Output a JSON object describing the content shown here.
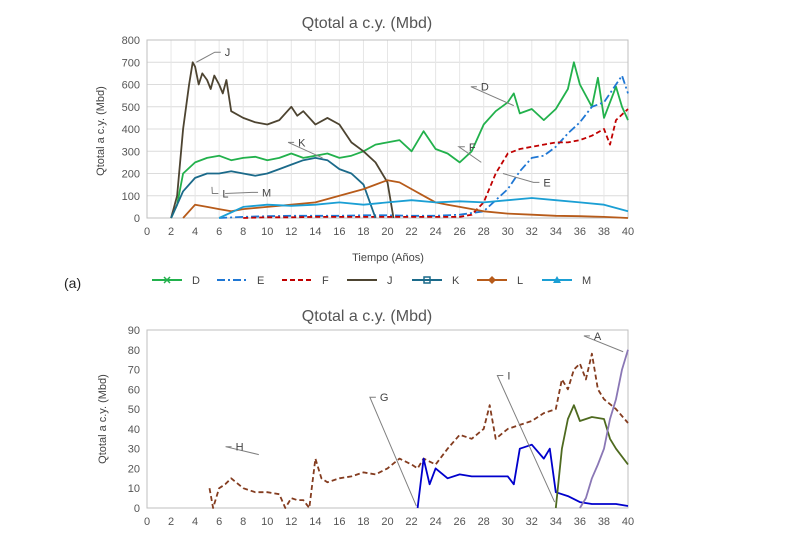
{
  "panel_label": "(a)",
  "chart_data": [
    {
      "type": "line",
      "title": "Qtotal a c.y. (Mbd)",
      "xlabel": "Tiempo (Años)",
      "ylabel": "Qtotal a c.y. (Mbd)",
      "xlim": [
        0,
        40
      ],
      "ylim": [
        0,
        800
      ],
      "xticks": [
        0,
        2,
        4,
        6,
        8,
        10,
        12,
        14,
        16,
        18,
        20,
        22,
        24,
        26,
        28,
        30,
        32,
        34,
        36,
        38,
        40
      ],
      "yticks": [
        0,
        100,
        200,
        300,
        400,
        500,
        600,
        700,
        800
      ],
      "grid": true,
      "legend_position": "bottom",
      "series": [
        {
          "name": "D",
          "color": "#22b14c",
          "dash": "solid",
          "marker": "x",
          "x": [
            2,
            2.5,
            3,
            4,
            5,
            6,
            7,
            8,
            9,
            10,
            11,
            12,
            13,
            14,
            15,
            16,
            17,
            18,
            19,
            20,
            21,
            22,
            23,
            24,
            25,
            26,
            27,
            28,
            29,
            30,
            30.5,
            31,
            32,
            33,
            34,
            35,
            35.5,
            36,
            37,
            37.5,
            38,
            39,
            39.5,
            40
          ],
          "y": [
            0,
            60,
            200,
            250,
            270,
            280,
            260,
            270,
            275,
            260,
            270,
            290,
            270,
            280,
            290,
            270,
            280,
            300,
            330,
            340,
            350,
            300,
            390,
            310,
            290,
            250,
            300,
            420,
            480,
            520,
            560,
            470,
            490,
            440,
            490,
            580,
            700,
            600,
            500,
            630,
            450,
            590,
            500,
            440
          ]
        },
        {
          "name": "E",
          "color": "#1f77d4",
          "dash": "dashdot",
          "marker": "",
          "x": [
            6,
            8,
            10,
            12,
            14,
            16,
            18,
            20,
            22,
            24,
            26,
            28,
            29,
            30,
            31,
            32,
            33,
            34,
            35,
            36,
            37,
            38,
            39,
            39.5,
            40
          ],
          "y": [
            0,
            5,
            8,
            10,
            10,
            10,
            12,
            12,
            10,
            10,
            15,
            30,
            80,
            130,
            210,
            270,
            280,
            320,
            380,
            430,
            500,
            520,
            600,
            640,
            560
          ]
        },
        {
          "name": "F",
          "color": "#c00000",
          "dash": "dashed",
          "marker": "",
          "x": [
            8,
            10,
            12,
            14,
            16,
            18,
            20,
            22,
            24,
            26,
            27,
            28,
            29,
            30,
            31,
            32,
            33,
            34,
            35,
            36,
            37,
            38,
            38.5,
            39,
            40
          ],
          "y": [
            0,
            3,
            3,
            5,
            5,
            5,
            5,
            5,
            5,
            5,
            15,
            70,
            200,
            290,
            310,
            320,
            330,
            340,
            340,
            350,
            370,
            400,
            330,
            440,
            490
          ]
        },
        {
          "name": "J",
          "color": "#4d4431",
          "dash": "solid",
          "marker": "",
          "x": [
            2,
            2.5,
            3,
            3.5,
            3.8,
            4,
            4.3,
            4.6,
            5,
            5.3,
            5.6,
            6,
            6.3,
            6.6,
            7,
            8,
            9,
            10,
            11,
            12,
            12.5,
            13,
            14,
            15,
            16,
            17,
            18,
            19,
            20,
            20.5
          ],
          "y": [
            0,
            100,
            400,
            600,
            700,
            680,
            600,
            650,
            620,
            580,
            640,
            600,
            560,
            620,
            480,
            450,
            430,
            420,
            440,
            500,
            460,
            480,
            420,
            450,
            420,
            340,
            300,
            250,
            160,
            0
          ]
        },
        {
          "name": "K",
          "color": "#1b6a8a",
          "dash": "solid",
          "marker": "square",
          "x": [
            2,
            2.5,
            3,
            4,
            5,
            6,
            7,
            8,
            9,
            10,
            11,
            12,
            13,
            14,
            15,
            16,
            17,
            18,
            19
          ],
          "y": [
            0,
            60,
            120,
            180,
            200,
            200,
            210,
            200,
            190,
            200,
            220,
            240,
            260,
            270,
            260,
            220,
            200,
            150,
            0
          ]
        },
        {
          "name": "L",
          "color": "#b75b1a",
          "dash": "solid",
          "marker": "diamond",
          "x": [
            3,
            4,
            5,
            6,
            7,
            8,
            10,
            12,
            14,
            16,
            18,
            19,
            20,
            21,
            22,
            23,
            24,
            25,
            26,
            28,
            30,
            32,
            34,
            36,
            38,
            40
          ],
          "y": [
            0,
            60,
            50,
            40,
            30,
            40,
            50,
            60,
            70,
            100,
            130,
            150,
            170,
            160,
            130,
            100,
            70,
            60,
            50,
            30,
            20,
            15,
            10,
            8,
            5,
            0
          ]
        },
        {
          "name": "M",
          "color": "#1b9fd4",
          "dash": "solid",
          "marker": "triangle",
          "x": [
            6,
            8,
            10,
            12,
            14,
            16,
            18,
            20,
            22,
            24,
            26,
            28,
            30,
            32,
            34,
            36,
            38,
            40
          ],
          "y": [
            0,
            50,
            60,
            55,
            60,
            70,
            60,
            70,
            80,
            70,
            75,
            70,
            80,
            90,
            80,
            70,
            60,
            30
          ]
        }
      ],
      "annotations": [
        "J",
        "D",
        "K",
        "F",
        "E",
        "L",
        "M"
      ]
    },
    {
      "type": "line",
      "title": "Qtotal a c.y. (Mbd)",
      "xlabel": "",
      "ylabel": "Qtotal a c.y. (Mbd)",
      "xlim": [
        0,
        40
      ],
      "ylim": [
        0,
        90
      ],
      "xticks": [
        0,
        2,
        4,
        6,
        8,
        10,
        12,
        14,
        16,
        18,
        20,
        22,
        24,
        26,
        28,
        30,
        32,
        34,
        36,
        38,
        40
      ],
      "yticks": [
        0,
        10,
        20,
        30,
        40,
        50,
        60,
        70,
        80,
        90
      ],
      "grid": false,
      "series": [
        {
          "name": "H",
          "color": "#843c1f",
          "dash": "dashed",
          "marker": "",
          "x": [
            5.2,
            5.5,
            6,
            6.5,
            7,
            8,
            9,
            10,
            11,
            11.5,
            12,
            12.5,
            13,
            13.5,
            14,
            14.5,
            15,
            16,
            17,
            18,
            19,
            20,
            21,
            22,
            22.5,
            23,
            24,
            25,
            26,
            27,
            28,
            28.5,
            29,
            30,
            31,
            32,
            33,
            34,
            34.5,
            35,
            35.5,
            36,
            36.5,
            37,
            37.5,
            38,
            39,
            40
          ],
          "y": [
            10,
            0,
            10,
            12,
            15,
            10,
            8,
            8,
            7,
            0,
            5,
            4,
            4,
            0,
            25,
            15,
            13,
            15,
            16,
            18,
            17,
            20,
            25,
            22,
            20,
            25,
            22,
            30,
            37,
            35,
            40,
            52,
            35,
            40,
            42,
            44,
            48,
            50,
            65,
            60,
            70,
            73,
            65,
            78,
            60,
            55,
            50,
            43
          ]
        },
        {
          "name": "G",
          "color": "#0000cc",
          "dash": "solid",
          "marker": "x",
          "x": [
            22.5,
            23,
            23.5,
            24,
            25,
            26,
            27,
            28,
            29,
            30,
            30.5,
            31,
            32,
            33,
            33.5,
            34,
            35,
            36,
            37,
            38,
            39,
            40
          ],
          "y": [
            0,
            25,
            12,
            20,
            15,
            17,
            16,
            16,
            16,
            16,
            12,
            30,
            32,
            25,
            30,
            8,
            6,
            3,
            2,
            2,
            2,
            1
          ]
        },
        {
          "name": "I",
          "color": "#4e6a1f",
          "dash": "solid",
          "marker": "",
          "x": [
            34,
            34.5,
            35,
            35.5,
            36,
            37,
            38,
            38.5,
            39,
            40
          ],
          "y": [
            0,
            30,
            45,
            52,
            44,
            46,
            45,
            35,
            30,
            22
          ]
        },
        {
          "name": "A",
          "color": "#8a77b5",
          "dash": "solid",
          "marker": "",
          "x": [
            36,
            36.5,
            37,
            37.5,
            38,
            38.5,
            39,
            39.5,
            40
          ],
          "y": [
            0,
            5,
            15,
            22,
            30,
            45,
            55,
            70,
            80
          ]
        }
      ],
      "annotations": [
        "H",
        "G",
        "I",
        "A"
      ]
    }
  ]
}
